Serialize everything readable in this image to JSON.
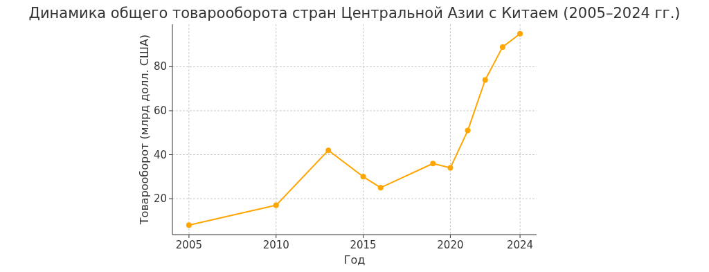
{
  "chart_data": {
    "type": "line",
    "title": "Динамика общего товарооборота стран Центральной Азии с Китаем (2005–2024 гг.)",
    "xlabel": "Год",
    "ylabel": "Товарооборот (млрд долл. США)",
    "x": [
      2005,
      2010,
      2013,
      2015,
      2016,
      2019,
      2020,
      2021,
      2022,
      2023,
      2024
    ],
    "series": [
      {
        "color": "#ffa500",
        "values": [
          8,
          17,
          42,
          30,
          25,
          36,
          34,
          51,
          74,
          89,
          95
        ]
      }
    ],
    "xlim": [
      2004.05,
      2024.95
    ],
    "xticks": [
      2005,
      2010,
      2015,
      2020,
      2024
    ],
    "ylim": [
      3.65,
      99.35
    ],
    "yticks": [
      20,
      40,
      60,
      80
    ],
    "grid": true,
    "marker": "circle",
    "line_style": "solid"
  }
}
